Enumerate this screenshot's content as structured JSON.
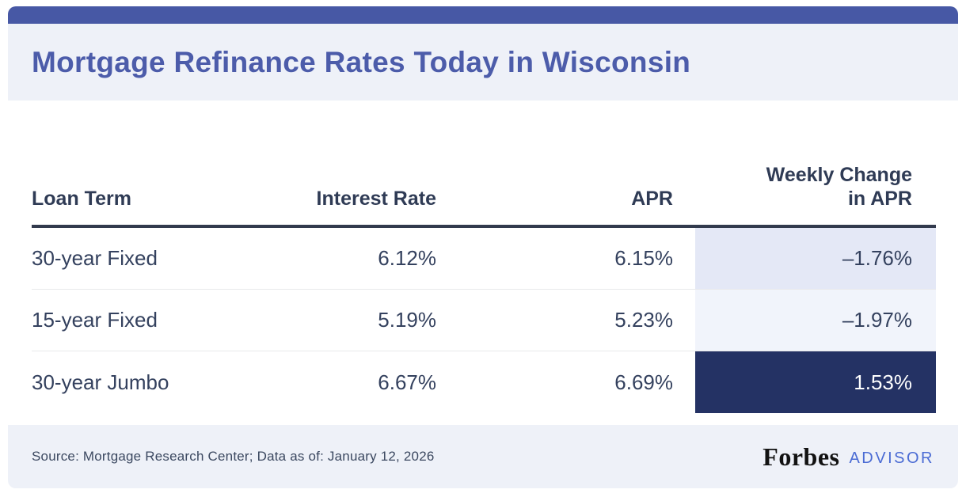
{
  "title": "Mortgage Refinance Rates Today in Wisconsin",
  "table": {
    "columns": [
      {
        "label": "Loan Term",
        "align": "left"
      },
      {
        "label": "Interest Rate",
        "align": "right"
      },
      {
        "label": "APR",
        "align": "right"
      },
      {
        "label": "Weekly Change in APR",
        "align": "right"
      }
    ],
    "rows": [
      {
        "loan_term": "30-year Fixed",
        "interest_rate": "6.12%",
        "apr": "6.15%",
        "weekly_change": "–1.76%"
      },
      {
        "loan_term": "15-year Fixed",
        "interest_rate": "5.19%",
        "apr": "5.23%",
        "weekly_change": "–1.97%"
      },
      {
        "loan_term": "30-year Jumbo",
        "interest_rate": "6.67%",
        "apr": "6.69%",
        "weekly_change": "1.53%"
      }
    ]
  },
  "footer": {
    "source": "Source: Mortgage Research Center; Data as of: January 12, 2026",
    "brand": "Forbes",
    "brand_suffix": "ADVISOR"
  },
  "colors": {
    "topbar": "#4758a5",
    "band_background": "#eef1f8",
    "title_text": "#4c5caa",
    "header_rule": "#323a4d",
    "body_text": "#34415e",
    "weekly_change_row1_bg": "#e4e8f6",
    "weekly_change_row2_bg": "#f1f4fb",
    "weekly_change_row3_bg": "#243264",
    "weekly_change_row3_text": "#ffffff",
    "advisor_blue": "#4a6bd4",
    "forbes_black": "#121212"
  }
}
